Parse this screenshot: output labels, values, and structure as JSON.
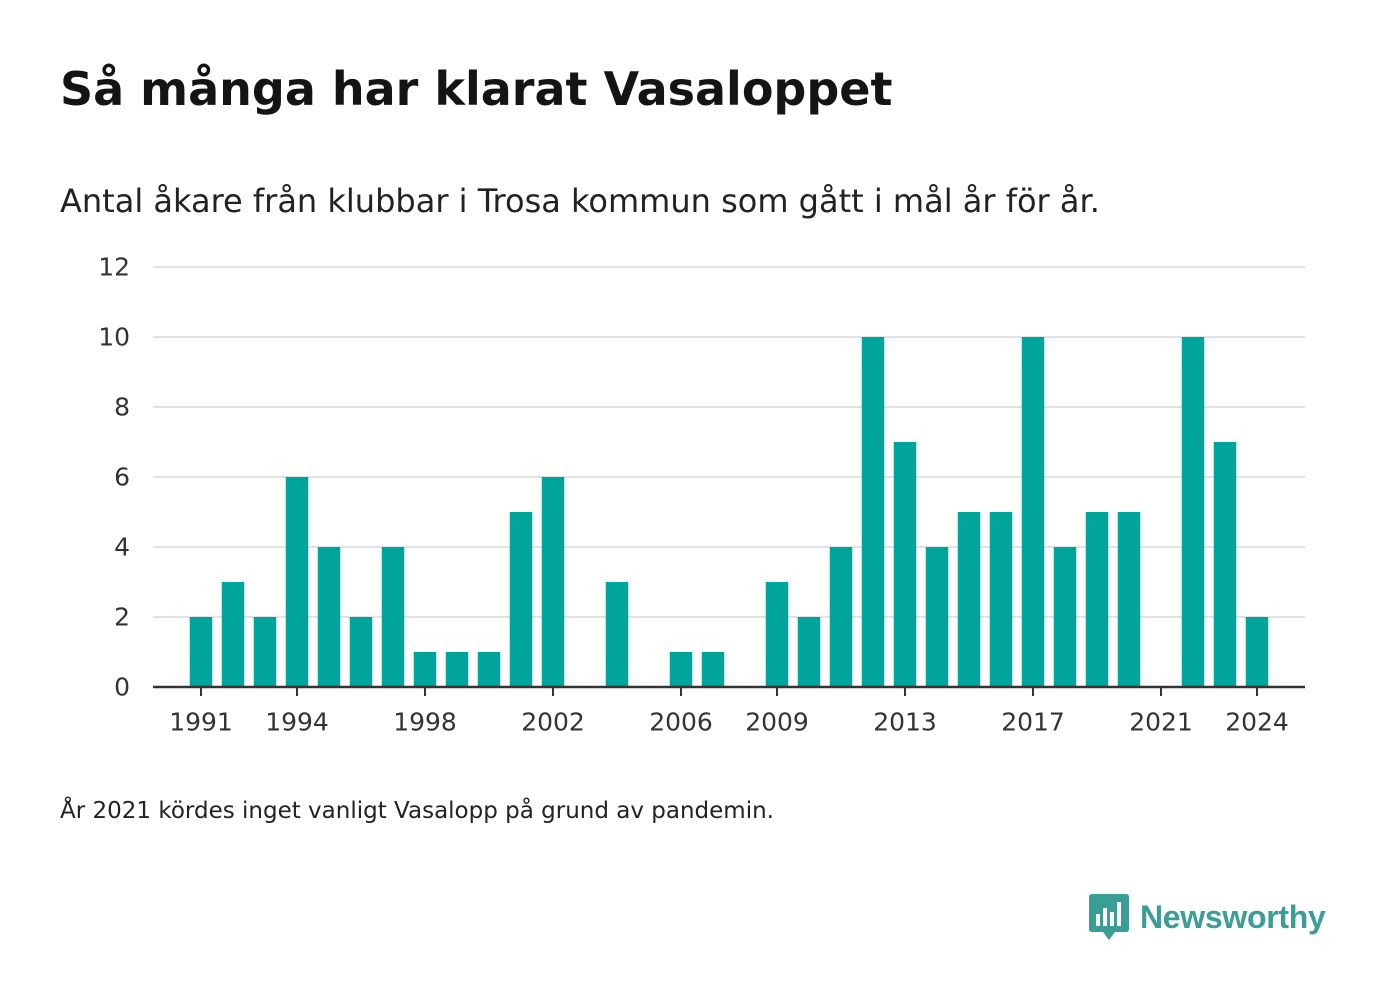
{
  "title": "Så många har klarat Vasaloppet",
  "subtitle": "Antal åkare från klubbar i Trosa kommun som gått i mål år för år.",
  "footnote": "År 2021 kördes inget vanligt Vasalopp på grund av pandemin.",
  "brand": {
    "name": "Newsworthy",
    "icon": "newsworthy-logo-icon",
    "color": "#3a9d96"
  },
  "chart_data": {
    "type": "bar",
    "title": "Så många har klarat Vasaloppet",
    "subtitle": "Antal åkare från klubbar i Trosa kommun som gått i mål år för år.",
    "xlabel": "",
    "ylabel": "",
    "categories": [
      1990,
      1991,
      1992,
      1993,
      1994,
      1995,
      1996,
      1997,
      1998,
      1999,
      2000,
      2001,
      2002,
      2003,
      2004,
      2005,
      2006,
      2007,
      2008,
      2009,
      2010,
      2011,
      2012,
      2013,
      2014,
      2015,
      2016,
      2017,
      2018,
      2019,
      2020,
      2021,
      2022,
      2023,
      2024,
      2025
    ],
    "values": [
      0,
      2,
      3,
      2,
      6,
      4,
      2,
      4,
      1,
      1,
      1,
      5,
      6,
      0,
      3,
      0,
      1,
      1,
      0,
      3,
      2,
      4,
      10,
      7,
      4,
      5,
      5,
      10,
      4,
      5,
      5,
      0,
      10,
      7,
      2,
      0
    ],
    "x_tick_labels": [
      "1991",
      "1994",
      "1998",
      "2002",
      "2006",
      "2009",
      "2013",
      "2017",
      "2021",
      "2024"
    ],
    "y_tick_labels": [
      "0",
      "2",
      "4",
      "6",
      "8",
      "10",
      "12"
    ],
    "ylim": [
      0,
      12
    ],
    "grid": true,
    "bar_color": "#00a49a",
    "gridline_color": "#e2e2e2",
    "axis_color": "#333333"
  }
}
